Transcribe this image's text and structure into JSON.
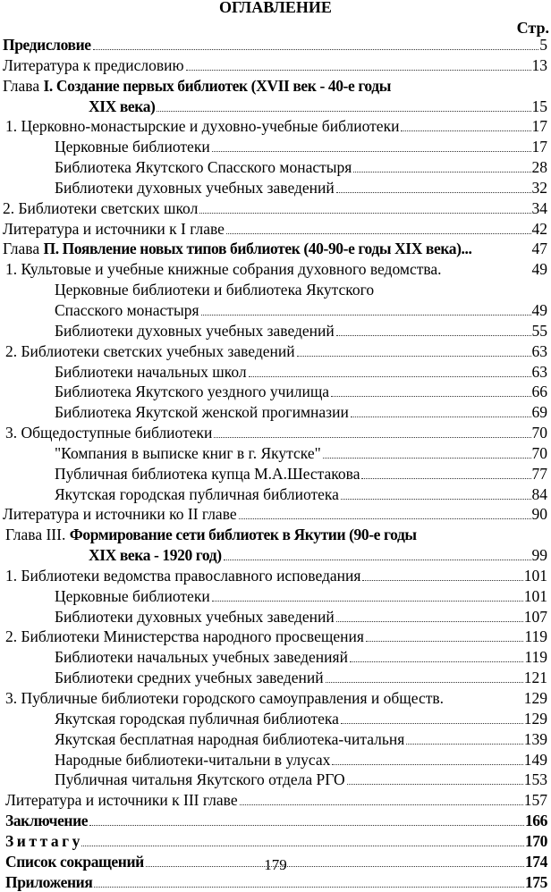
{
  "heading": "ОГЛАВЛЕНИЕ",
  "page_column_label": "Стр.",
  "entries": [
    {
      "level": 0,
      "prefix": "",
      "text": "Предисловие",
      "bold": true,
      "page": "5",
      "leader": true
    },
    {
      "level": 0,
      "prefix": "Литература к предисловию",
      "text": "",
      "bold": false,
      "page": "13",
      "leader": true
    },
    {
      "level": 0,
      "prefix": "Глава ",
      "text": "I.  Создание первых библиотек  (XVII век - 40-е годы",
      "bold": true,
      "page": "",
      "leader": false
    },
    {
      "level": 3,
      "prefix": "",
      "text": "XIX века)",
      "bold": true,
      "page": "15",
      "leader": true
    },
    {
      "level": 1,
      "prefix": "1. Церковно-монастырские и духовно-учебные библиотеки",
      "text": "",
      "bold": false,
      "page": "17",
      "leader": true
    },
    {
      "level": 2,
      "prefix": "Церковные библиотеки",
      "text": "",
      "bold": false,
      "page": "17",
      "leader": true
    },
    {
      "level": 2,
      "prefix": "Библиотека Якутского Спасского монастыря",
      "text": "",
      "bold": false,
      "page": "28",
      "leader": true
    },
    {
      "level": 2,
      "prefix": "Библиотеки духовных учебных заведений",
      "text": "",
      "bold": false,
      "page": "32",
      "leader": true
    },
    {
      "level": 0,
      "prefix": "2. Библиотеки светских школ",
      "text": "",
      "bold": false,
      "page": "34",
      "leader": true
    },
    {
      "level": 0,
      "prefix": "Литература и источники к I главе",
      "text": "",
      "bold": false,
      "page": "42",
      "leader": true
    },
    {
      "level": 0,
      "prefix": "Глава ",
      "text": "П. Появление новых типов библиотек (40-90-е годы XIX века)...",
      "bold": true,
      "page": "47",
      "leader": false
    },
    {
      "level": 1,
      "prefix": "1. Культовые и учебные книжные собрания духовного ведомства.",
      "text": "",
      "bold": false,
      "page": "49",
      "leader": false
    },
    {
      "level": 2,
      "prefix": "Церковные библиотеки и библиотека Якутского",
      "text": "",
      "bold": false,
      "page": "",
      "leader": false
    },
    {
      "level": 2,
      "prefix": "Спасского монастыря",
      "text": "",
      "bold": false,
      "page": "49",
      "leader": true
    },
    {
      "level": 2,
      "prefix": "Библиотеки духовных учебных заведений",
      "text": "",
      "bold": false,
      "page": "55",
      "leader": true
    },
    {
      "level": 1,
      "prefix": "2. Библиотеки светских  учебных заведений",
      "text": "",
      "bold": false,
      "page": "63",
      "leader": true
    },
    {
      "level": 2,
      "prefix": "Библиотеки начальных школ",
      "text": "",
      "bold": false,
      "page": "63",
      "leader": true
    },
    {
      "level": 2,
      "prefix": "Библиотека Якутского уездного училища",
      "text": "",
      "bold": false,
      "page": "66",
      "leader": true
    },
    {
      "level": 2,
      "prefix": "Библиотека Якутской женской прогимназии",
      "text": "",
      "bold": false,
      "page": "69",
      "leader": true
    },
    {
      "level": 1,
      "prefix": "3. Общедоступные библиотеки",
      "text": "",
      "bold": false,
      "page": "70",
      "leader": true
    },
    {
      "level": 2,
      "prefix": "\"Компания в выписке книг в г. Якутске\"",
      "text": "",
      "bold": false,
      "page": "70",
      "leader": true
    },
    {
      "level": 2,
      "prefix": "Публичная библиотека купца М.А.Шестакова",
      "text": "",
      "bold": false,
      "page": "77",
      "leader": true
    },
    {
      "level": 2,
      "prefix": "Якутская городская публичная библиотека",
      "text": "",
      "bold": false,
      "page": "84",
      "leader": true
    },
    {
      "level": 0,
      "prefix": "Литература и источники ко II главе",
      "text": "",
      "bold": false,
      "page": "90",
      "leader": true
    },
    {
      "level": 1,
      "prefix": "Глава III. ",
      "text": "Формирование сети библиотек в Якутии (90-е годы",
      "bold": true,
      "page": "",
      "leader": false
    },
    {
      "level": 3,
      "prefix": "",
      "text": "XIX века  -  1920 год)",
      "bold": true,
      "page": "99",
      "leader": true
    },
    {
      "level": 1,
      "prefix": "1. Библиотеки ведомства православного исповедания",
      "text": "",
      "bold": false,
      "page": "101",
      "leader": true
    },
    {
      "level": 2,
      "prefix": "Церковные библиотеки",
      "text": "",
      "bold": false,
      "page": "101",
      "leader": true
    },
    {
      "level": 2,
      "prefix": "Библиотеки духовных учебных заведений",
      "text": "",
      "bold": false,
      "page": "107",
      "leader": true
    },
    {
      "level": 1,
      "prefix": "2. Библиотеки  Министерства народного просвещения",
      "text": "",
      "bold": false,
      "page": "119",
      "leader": true
    },
    {
      "level": 2,
      "prefix": "Библиотеки начальных учебных заведенияй",
      "text": "",
      "bold": false,
      "page": "119",
      "leader": true
    },
    {
      "level": 2,
      "prefix": "Библиотеки средних учебных заведений",
      "text": "",
      "bold": false,
      "page": "121",
      "leader": true
    },
    {
      "level": 1,
      "prefix": "3. Публичные библиотеки городского самоуправления и обществ.",
      "text": "",
      "bold": false,
      "page": "129",
      "leader": false
    },
    {
      "level": 2,
      "prefix": "Якутская городская публичная библиотека",
      "text": "",
      "bold": false,
      "page": "129",
      "leader": true
    },
    {
      "level": 2,
      "prefix": "Якутская бесплатная народная библиотека-читальня",
      "text": "",
      "bold": false,
      "page": "139",
      "leader": true
    },
    {
      "level": 2,
      "prefix": "Народные библиотеки-читальни в улусах",
      "text": "",
      "bold": false,
      "page": "149",
      "leader": true
    },
    {
      "level": 2,
      "prefix": "Публичная читальня Якутского отдела РГО",
      "text": "",
      "bold": false,
      "page": "153",
      "leader": true
    },
    {
      "level": 1,
      "prefix": "Литература и источники к III главе",
      "text": "",
      "bold": false,
      "page": "157",
      "leader": true
    },
    {
      "level": 1,
      "prefix": "",
      "text": "Заключение",
      "bold": true,
      "page": "166",
      "leader": true
    },
    {
      "level": 1,
      "prefix": "",
      "text": "З и т т а г у",
      "bold": true,
      "page": "170",
      "leader": true
    },
    {
      "level": 1,
      "prefix": "",
      "text": "Список сокращений",
      "bold": true,
      "page": "174",
      "leader": true
    },
    {
      "level": 1,
      "prefix": "",
      "text": "Приложения",
      "bold": true,
      "page": "175",
      "leader": true
    }
  ],
  "footer_page_number": "179"
}
